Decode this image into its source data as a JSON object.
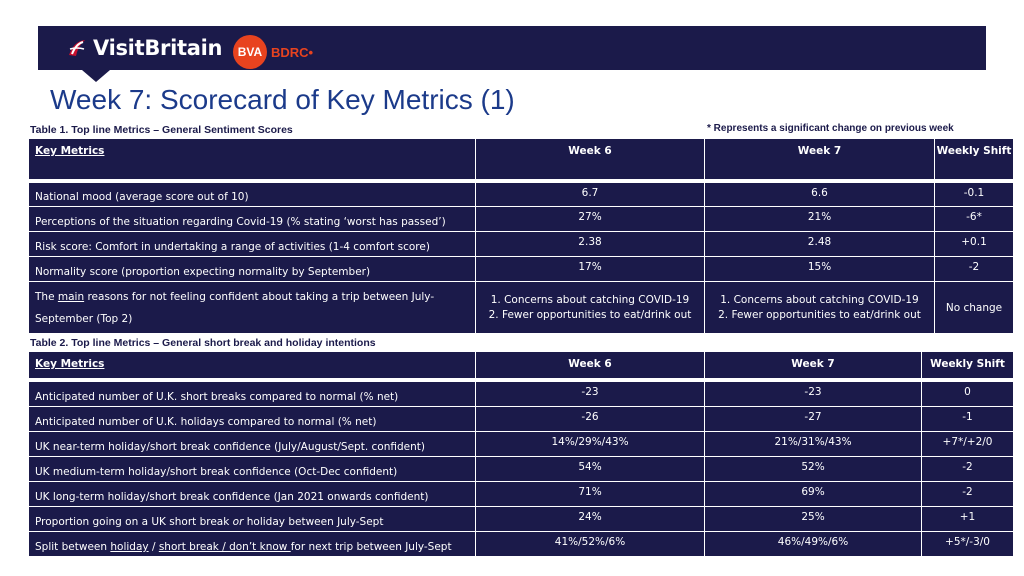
{
  "logos": {
    "visitbritain": "VisitBritain",
    "bva": "BVA",
    "bdrc": "BDRC•"
  },
  "page_title": "Week 7: Scorecard of Key Metrics (1)",
  "note": "* Represents a significant change on previous week",
  "table1": {
    "title": "Table 1. Top line Metrics – General Sentiment Scores",
    "headers": [
      "Key Metrics",
      "Week 6",
      "Week 7",
      "Weekly Shift"
    ],
    "rows": [
      {
        "metric": "National mood (average score out of 10)",
        "w6": "6.7",
        "w7": "6.6",
        "shift": "-0.1"
      },
      {
        "metric": "Perceptions of the situation regarding Covid-19 (% stating ‘worst has passed’)",
        "w6": "27%",
        "w7": "21%",
        "shift": "-6*"
      },
      {
        "metric": "Risk score: Comfort in undertaking a range of activities (1-4 comfort score)",
        "w6": "2.38",
        "w7": "2.48",
        "shift": "+0.1"
      },
      {
        "metric": "Normality score (proportion expecting normality by September)",
        "w6": "17%",
        "w7": "15%",
        "shift": "-2"
      }
    ],
    "reasons_row": {
      "metric_pre": "The ",
      "metric_u": "main",
      "metric_post": " reasons for not feeling confident about taking a trip between July-September (Top 2)",
      "w6_line1": "1. Concerns about catching COVID-19",
      "w6_line2": "2. Fewer opportunities to eat/drink out",
      "w7_line1": "1. Concerns about catching COVID-19",
      "w7_line2": "2. Fewer opportunities to eat/drink out",
      "shift": "No change"
    }
  },
  "table2": {
    "title": "Table 2. Top line Metrics – General short break and holiday intentions",
    "headers": [
      "Key Metrics",
      "Week 6",
      "Week 7",
      "Weekly Shift"
    ],
    "rows": [
      {
        "metric": "Anticipated number of U.K. short breaks compared to normal (% net)",
        "w6": "-23",
        "w7": "-23",
        "shift": "0"
      },
      {
        "metric": "Anticipated number of U.K. holidays compared to normal (% net)",
        "w6": "-26",
        "w7": "-27",
        "shift": "-1"
      },
      {
        "metric": "UK near-term holiday/short break confidence (July/August/Sept. confident)",
        "w6": "14%/29%/43%",
        "w7": "21%/31%/43%",
        "shift": "+7*/+2/0"
      },
      {
        "metric": "UK medium-term holiday/short break confidence (Oct-Dec confident)",
        "w6": "54%",
        "w7": "52%",
        "shift": "-2"
      },
      {
        "metric": "UK long-term holiday/short break confidence (Jan 2021 onwards confident)",
        "w6": "71%",
        "w7": "69%",
        "shift": "-2"
      }
    ],
    "proportion_row": {
      "metric_pre": "Proportion going on a UK short break ",
      "metric_i": "or",
      "metric_post": " holiday between July-Sept",
      "w6": "24%",
      "w7": "25%",
      "shift": "+1"
    },
    "split_row": {
      "metric_pre": "Split between ",
      "metric_u1": "holiday",
      "metric_mid": " / ",
      "metric_u2": "short break / don’t know ",
      "metric_post": "for next trip between July-Sept",
      "w6": "41%/52%/6%",
      "w7": "46%/49%/6%",
      "shift": "+5*/-3/0"
    }
  }
}
